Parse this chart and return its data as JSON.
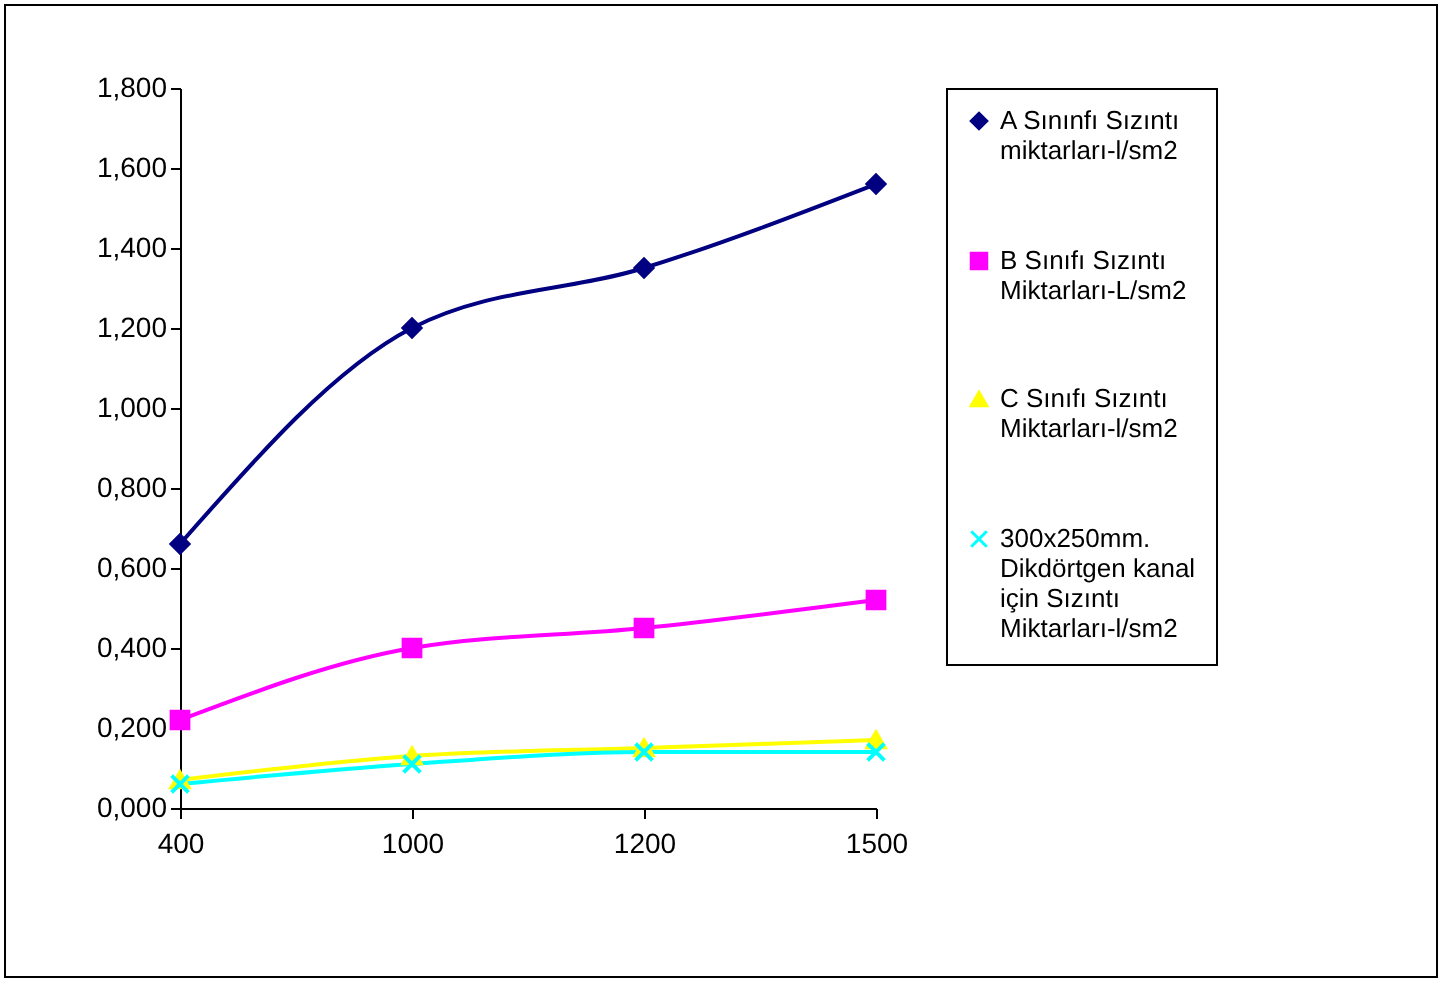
{
  "chart_data": {
    "type": "line",
    "categories": [
      "400",
      "1000",
      "1200",
      "1500"
    ],
    "ylim": [
      0,
      1.8
    ],
    "yticks": [
      {
        "value": 0,
        "label": "0,000"
      },
      {
        "value": 0.2,
        "label": "0,200"
      },
      {
        "value": 0.4,
        "label": "0,400"
      },
      {
        "value": 0.6,
        "label": "0,600"
      },
      {
        "value": 0.8,
        "label": "0,800"
      },
      {
        "value": 1.0,
        "label": "1,000"
      },
      {
        "value": 1.2,
        "label": "1,200"
      },
      {
        "value": 1.4,
        "label": "1,400"
      },
      {
        "value": 1.6,
        "label": "1,600"
      },
      {
        "value": 1.8,
        "label": "1,800"
      }
    ],
    "series": [
      {
        "name": "A Sınınfı Sızıntı miktarları-l/sm2",
        "color": "#000080",
        "marker": "diamond",
        "values": [
          0.66,
          1.2,
          1.35,
          1.56
        ]
      },
      {
        "name": "B Sınıfı Sızıntı Miktarları-L/sm2",
        "color": "#ff00ff",
        "marker": "square",
        "values": [
          0.22,
          0.4,
          0.45,
          0.52
        ]
      },
      {
        "name": "C Sınıfı Sızıntı Miktarları-l/sm2",
        "color": "#ffff00",
        "marker": "triangle",
        "values": [
          0.07,
          0.13,
          0.15,
          0.17
        ]
      },
      {
        "name": "300x250mm. Dikdörtgen kanal için Sızıntı Miktarları-l/sm2",
        "color": "#00ffff",
        "marker": "cross",
        "values": [
          0.06,
          0.11,
          0.14,
          0.14
        ]
      }
    ],
    "legend": "right",
    "grid": false
  }
}
